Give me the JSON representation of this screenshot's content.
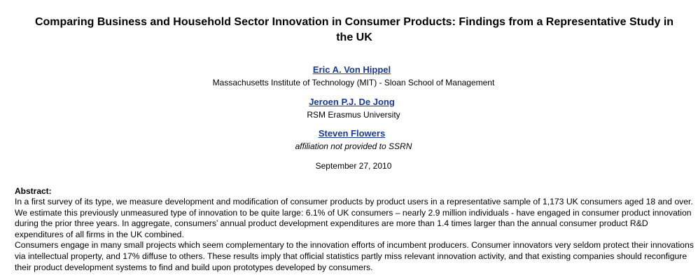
{
  "paper": {
    "title": "Comparing Business and Household Sector Innovation in Consumer Products: Findings from a Representative Study in the UK",
    "authors": [
      {
        "name": "Eric A. Von Hippel",
        "affiliation": "Massachusetts Institute of Technology (MIT) - Sloan School of Management"
      },
      {
        "name": "Jeroen P.J. De Jong",
        "affiliation": "RSM Erasmus University"
      },
      {
        "name": "Steven Flowers",
        "affiliation": "affiliation not provided to SSRN"
      }
    ],
    "date": "September 27, 2010",
    "abstract_heading": "Abstract:",
    "abstract_paragraphs": [
      "In a first survey of its type, we measure development and modification of consumer products by product users in a representative sample of 1,173 UK consumers aged 18 and over. We estimate this previously unmeasured type of innovation to be quite large: 6.1% of UK consumers – nearly 2.9 million individuals - have engaged in consumer product innovation during the prior three years. In aggregate, consumers’ annual product development expenditures are more than 1.4 times larger than the annual consumer product R&D expenditures of all firms in the UK combined.",
      "Consumers engage in many small projects which seem complementary to the innovation efforts of incumbent producers. Consumer innovators very seldom protect their innovations via intellectual property, and 17% diffuse to others. These results imply that official statistics partly miss relevant innovation activity, and that existing companies should reconfigure their product development systems to find and build upon prototypes developed by consumers."
    ]
  },
  "colors": {
    "link": "#1a3a8c",
    "text": "#000000",
    "background": "#ffffff"
  }
}
